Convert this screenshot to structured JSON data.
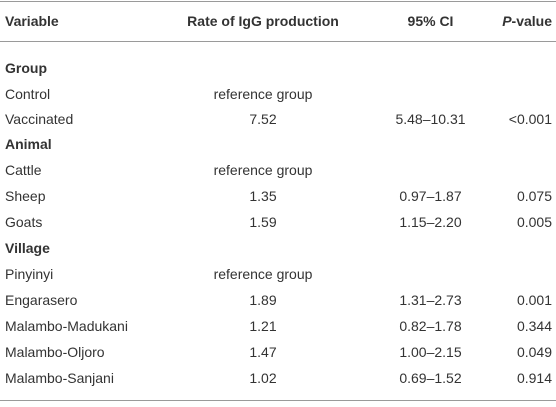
{
  "header": {
    "variable": "Variable",
    "rate": "Rate of IgG production",
    "ci": "95% CI",
    "p_italic": "P",
    "p_rest": "-value"
  },
  "sections": [
    {
      "title": "Group",
      "rows": [
        {
          "variable": "Control",
          "rate": "reference group",
          "ci": "",
          "p": ""
        },
        {
          "variable": "Vaccinated",
          "rate": "7.52",
          "ci": "5.48–10.31",
          "p": "<0.001"
        }
      ]
    },
    {
      "title": "Animal",
      "rows": [
        {
          "variable": "Cattle",
          "rate": "reference group",
          "ci": "",
          "p": ""
        },
        {
          "variable": "Sheep",
          "rate": "1.35",
          "ci": "0.97–1.87",
          "p": "0.075"
        },
        {
          "variable": "Goats",
          "rate": "1.59",
          "ci": "1.15–2.20",
          "p": "0.005"
        }
      ]
    },
    {
      "title": "Village",
      "rows": [
        {
          "variable": "Pinyinyi",
          "rate": "reference group",
          "ci": "",
          "p": ""
        },
        {
          "variable": "Engarasero",
          "rate": "1.89",
          "ci": "1.31–2.73",
          "p": "0.001"
        },
        {
          "variable": "Malambo-Madukani",
          "rate": "1.21",
          "ci": "0.82–1.78",
          "p": "0.344"
        },
        {
          "variable": "Malambo-Oljoro",
          "rate": "1.47",
          "ci": "1.00–2.15",
          "p": "0.049"
        },
        {
          "variable": "Malambo-Sanjani",
          "rate": "1.02",
          "ci": "0.69–1.52",
          "p": "0.914"
        }
      ]
    }
  ]
}
